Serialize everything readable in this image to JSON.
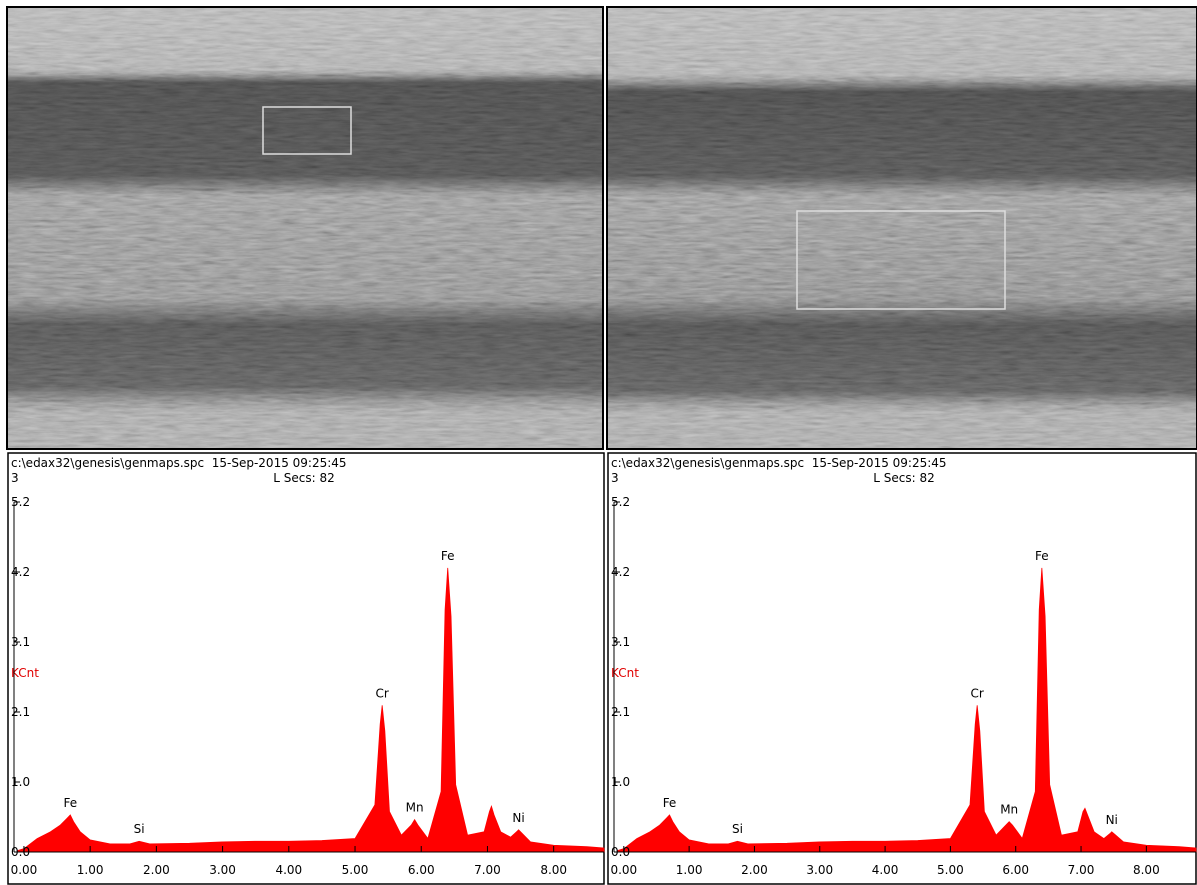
{
  "chart_data": [
    {
      "type": "area",
      "title": "c:\\edax32\\genesis\\genmaps.spc  15-Sep-2015 09:25:45",
      "subtitle": "3",
      "annotation": "L Secs: 82",
      "ylabel": "KCnt",
      "color": "#ff0000",
      "x": [
        -0.1,
        0.0,
        0.2,
        0.4,
        0.55,
        0.65,
        0.7,
        0.75,
        0.85,
        1.0,
        1.3,
        1.6,
        1.74,
        1.9,
        2.5,
        3.0,
        3.5,
        4.0,
        4.5,
        5.0,
        5.3,
        5.38,
        5.41,
        5.45,
        5.52,
        5.7,
        5.85,
        5.9,
        5.95,
        6.1,
        6.3,
        6.36,
        6.4,
        6.45,
        6.52,
        6.7,
        6.95,
        7.03,
        7.06,
        7.1,
        7.2,
        7.35,
        7.45,
        7.47,
        7.52,
        7.65,
        8.0,
        8.5,
        8.76
      ],
      "values": [
        0.02,
        0.05,
        0.2,
        0.3,
        0.4,
        0.5,
        0.55,
        0.45,
        0.3,
        0.18,
        0.12,
        0.12,
        0.16,
        0.12,
        0.13,
        0.15,
        0.16,
        0.16,
        0.17,
        0.2,
        0.7,
        1.9,
        2.18,
        1.8,
        0.6,
        0.25,
        0.4,
        0.48,
        0.4,
        0.2,
        0.9,
        3.6,
        4.22,
        3.5,
        1.0,
        0.25,
        0.3,
        0.6,
        0.68,
        0.55,
        0.3,
        0.22,
        0.31,
        0.33,
        0.28,
        0.15,
        0.1,
        0.08,
        0.06
      ],
      "peaks": [
        {
          "label": "Fe",
          "x": 0.7
        },
        {
          "label": "Si",
          "x": 1.74
        },
        {
          "label": "Cr",
          "x": 5.41
        },
        {
          "label": "Mn",
          "x": 5.9
        },
        {
          "label": "Fe",
          "x": 6.4
        },
        {
          "label": "Ni",
          "x": 7.47
        }
      ],
      "xlim": [
        -0.15,
        8.76
      ],
      "ylim": [
        0,
        5.2
      ],
      "xticks": [
        {
          "value": 0,
          "label": "0.00"
        },
        {
          "value": 1,
          "label": "1.00"
        },
        {
          "value": 2,
          "label": "2.00"
        },
        {
          "value": 3,
          "label": "3.00"
        },
        {
          "value": 4,
          "label": "4.00"
        },
        {
          "value": 5,
          "label": "5.00"
        },
        {
          "value": 6,
          "label": "6.00"
        },
        {
          "value": 7,
          "label": "7.00"
        },
        {
          "value": 8,
          "label": "8.00"
        }
      ],
      "yticks": [
        {
          "value": 0,
          "label": "0.0"
        },
        {
          "value": 1.04,
          "label": "1.0"
        },
        {
          "value": 2.08,
          "label": "2.1"
        },
        {
          "value": 3.12,
          "label": "3.1"
        },
        {
          "value": 4.16,
          "label": "4.2"
        },
        5.2
      ]
    },
    {
      "type": "area",
      "title": "c:\\edax32\\genesis\\genmaps.spc  15-Sep-2015 09:25:45",
      "subtitle": "3",
      "annotation": "L Secs: 82",
      "ylabel": "KCnt",
      "color": "#ff0000",
      "x": [
        -0.1,
        0.0,
        0.2,
        0.4,
        0.55,
        0.65,
        0.7,
        0.75,
        0.85,
        1.0,
        1.3,
        1.6,
        1.74,
        1.9,
        2.5,
        3.0,
        3.5,
        4.0,
        4.5,
        5.0,
        5.3,
        5.38,
        5.41,
        5.45,
        5.52,
        5.7,
        5.85,
        5.9,
        5.95,
        6.1,
        6.3,
        6.36,
        6.4,
        6.45,
        6.52,
        6.7,
        6.95,
        7.03,
        7.06,
        7.1,
        7.2,
        7.35,
        7.45,
        7.47,
        7.52,
        7.65,
        8.0,
        8.5,
        8.76
      ],
      "values": [
        0.02,
        0.05,
        0.2,
        0.3,
        0.4,
        0.5,
        0.55,
        0.45,
        0.3,
        0.18,
        0.12,
        0.12,
        0.16,
        0.12,
        0.13,
        0.15,
        0.16,
        0.16,
        0.17,
        0.2,
        0.7,
        1.9,
        2.18,
        1.8,
        0.6,
        0.25,
        0.4,
        0.45,
        0.4,
        0.2,
        0.9,
        3.6,
        4.22,
        3.5,
        1.0,
        0.25,
        0.3,
        0.6,
        0.65,
        0.55,
        0.3,
        0.2,
        0.28,
        0.3,
        0.26,
        0.15,
        0.1,
        0.08,
        0.06
      ],
      "peaks": [
        {
          "label": "Fe",
          "x": 0.7
        },
        {
          "label": "Si",
          "x": 1.74
        },
        {
          "label": "Cr",
          "x": 5.41
        },
        {
          "label": "Mn",
          "x": 5.9
        },
        {
          "label": "Fe",
          "x": 6.4
        },
        {
          "label": "Ni",
          "x": 7.47
        }
      ],
      "xlim": [
        -0.15,
        8.76
      ],
      "ylim": [
        0,
        5.2
      ],
      "xticks": [
        {
          "value": 0,
          "label": "0.00"
        },
        {
          "value": 1,
          "label": "1.00"
        },
        {
          "value": 2,
          "label": "2.00"
        },
        {
          "value": 3,
          "label": "3.00"
        },
        {
          "value": 4,
          "label": "4.00"
        },
        {
          "value": 5,
          "label": "5.00"
        },
        {
          "value": 6,
          "label": "6.00"
        },
        {
          "value": 7,
          "label": "7.00"
        },
        {
          "value": 8,
          "label": "8.00"
        }
      ],
      "yticks": [
        {
          "value": 0,
          "label": "0.0"
        },
        {
          "value": 1.04,
          "label": "1.0"
        },
        {
          "value": 2.08,
          "label": "2.1"
        },
        {
          "value": 3.12,
          "label": "3.1"
        },
        {
          "value": 4.16,
          "label": "4.2"
        },
        5.2
      ]
    }
  ]
}
